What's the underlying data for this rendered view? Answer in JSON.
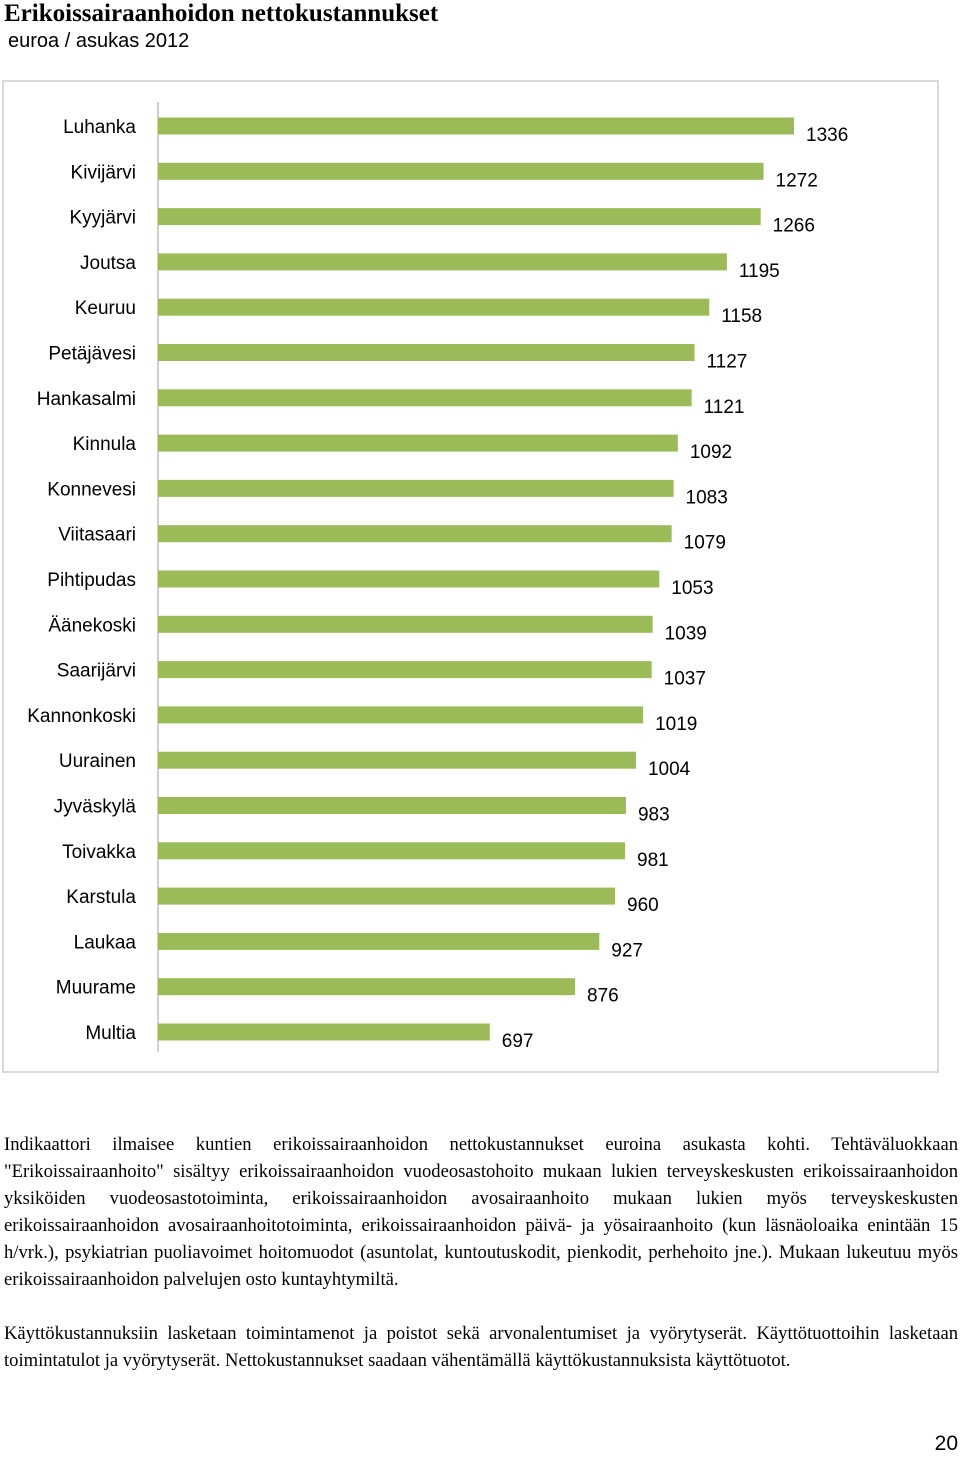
{
  "header": {
    "title": "Erikoissairaanhoidon nettokustannukset",
    "subtitle": "euroa / asukas 2012"
  },
  "chart_data": {
    "type": "bar",
    "orientation": "horizontal",
    "categories": [
      "Luhanka",
      "Kivijärvi",
      "Kyyjärvi",
      "Joutsa",
      "Keuruu",
      "Petäjävesi",
      "Hankasalmi",
      "Kinnula",
      "Konnevesi",
      "Viitasaari",
      "Pihtipudas",
      "Äänekoski",
      "Saarijärvi",
      "Kannonkoski",
      "Uurainen",
      "Jyväskylä",
      "Toivakka",
      "Karstula",
      "Laukaa",
      "Muurame",
      "Multia"
    ],
    "values": [
      1336,
      1272,
      1266,
      1195,
      1158,
      1127,
      1121,
      1092,
      1083,
      1079,
      1053,
      1039,
      1037,
      1019,
      1004,
      983,
      981,
      960,
      927,
      876,
      697
    ],
    "xlim": [
      0,
      1336
    ],
    "bar_color": "#9bbb59",
    "grid": false,
    "legend": "none",
    "data_labels": true
  },
  "description": {
    "paragraph1": "Indikaattori ilmaisee kuntien erikoissairaanhoidon nettokustannukset euroina asukasta kohti. Tehtäväluokkaan \"Erikoissairaanhoito\" sisältyy erikoissairaanhoidon vuodeosastohoito mukaan lukien terveyskeskusten erikoissairaanhoidon yksiköiden vuodeosastotoiminta, erikoissairaanhoidon avosairaanhoito mukaan lukien myös terveyskeskusten erikoissairaanhoidon avosairaanhoitotoiminta, erikoissairaanhoidon päivä- ja yösairaanhoito (kun läsnäoloaika enintään 15 h/vrk.), psykiatrian puoliavoimet hoitomuodot (asuntolat, kuntoutuskodit, pienkodit, perhehoito jne.). Mukaan lukeutuu myös erikoissairaanhoidon palvelujen osto kuntayhtymiltä.",
    "paragraph2": "Käyttökustannuksiin lasketaan toimintamenot ja poistot sekä arvonalentumiset ja vyörytyserät. Käyttötuottoihin lasketaan toimintatulot ja vyörytyserät. Nettokustannukset saadaan vähentämällä käyttökustannuksista käyttötuotot."
  },
  "footer": {
    "page_number": "20"
  }
}
